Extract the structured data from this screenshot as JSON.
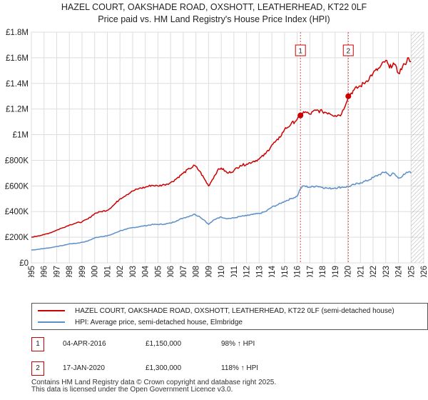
{
  "chart_data": {
    "type": "line",
    "title": "HAZEL COURT, OAKSHADE ROAD, OXSHOTT, LEATHERHEAD, KT22 0LF",
    "subtitle": "Price paid vs. HM Land Registry's House Price Index (HPI)",
    "xlabel": "",
    "ylabel": "",
    "xlim": [
      1995,
      2026
    ],
    "ylim": [
      0,
      1800000
    ],
    "x_ticks": [
      "1995",
      "1996",
      "1997",
      "1998",
      "1999",
      "2000",
      "2001",
      "2002",
      "2003",
      "2004",
      "2005",
      "2006",
      "2007",
      "2008",
      "2009",
      "2010",
      "2011",
      "2012",
      "2013",
      "2014",
      "2015",
      "2016",
      "2017",
      "2018",
      "2019",
      "2020",
      "2021",
      "2022",
      "2023",
      "2024",
      "2025",
      "2026"
    ],
    "y_ticks": [
      {
        "value": 0,
        "label": "£0"
      },
      {
        "value": 200000,
        "label": "£200K"
      },
      {
        "value": 400000,
        "label": "£400K"
      },
      {
        "value": 600000,
        "label": "£600K"
      },
      {
        "value": 800000,
        "label": "£800K"
      },
      {
        "value": 1000000,
        "label": "£1M"
      },
      {
        "value": 1200000,
        "label": "£1.2M"
      },
      {
        "value": 1400000,
        "label": "£1.4M"
      },
      {
        "value": 1600000,
        "label": "£1.6M"
      },
      {
        "value": 1800000,
        "label": "£1.8M"
      }
    ],
    "grid": true,
    "future_hatch_from": 2025.0,
    "series": [
      {
        "name": "HAZEL COURT, OAKSHADE ROAD, OXSHOTT, LEATHERHEAD, KT22 0LF (semi-detached house)",
        "color": "#cc0000",
        "x": [
          1995.0,
          1995.5,
          1996.0,
          1996.5,
          1997.0,
          1997.5,
          1998.0,
          1998.5,
          1999.0,
          1999.5,
          2000.0,
          2000.5,
          2001.0,
          2001.5,
          2002.0,
          2002.5,
          2003.0,
          2003.5,
          2004.0,
          2004.5,
          2005.0,
          2005.5,
          2006.0,
          2006.5,
          2007.0,
          2007.5,
          2007.9,
          2008.3,
          2008.7,
          2009.0,
          2009.3,
          2009.7,
          2010.0,
          2010.5,
          2011.0,
          2011.5,
          2012.0,
          2012.5,
          2013.0,
          2013.5,
          2014.0,
          2014.5,
          2015.0,
          2015.5,
          2016.0,
          2016.26,
          2016.5,
          2017.0,
          2017.5,
          2018.0,
          2018.5,
          2019.0,
          2019.5,
          2020.04,
          2020.5,
          2021.0,
          2021.5,
          2022.0,
          2022.5,
          2023.0,
          2023.3,
          2023.6,
          2024.0,
          2024.5,
          2024.8,
          2025.0
        ],
        "values": [
          200000,
          210000,
          220000,
          235000,
          255000,
          275000,
          295000,
          310000,
          320000,
          345000,
          385000,
          400000,
          410000,
          450000,
          500000,
          530000,
          560000,
          580000,
          590000,
          605000,
          600000,
          610000,
          625000,
          660000,
          700000,
          735000,
          760000,
          715000,
          650000,
          600000,
          650000,
          720000,
          740000,
          700000,
          720000,
          760000,
          770000,
          790000,
          810000,
          850000,
          920000,
          960000,
          1040000,
          1080000,
          1120000,
          1150000,
          1180000,
          1160000,
          1190000,
          1180000,
          1170000,
          1150000,
          1160000,
          1300000,
          1350000,
          1380000,
          1420000,
          1480000,
          1520000,
          1580000,
          1520000,
          1560000,
          1480000,
          1550000,
          1600000,
          1570000
        ]
      },
      {
        "name": "HPI: Average price, semi-detached house, Elmbridge",
        "color": "#5b8fc9",
        "x": [
          1995.0,
          1995.5,
          1996.0,
          1996.5,
          1997.0,
          1997.5,
          1998.0,
          1998.5,
          1999.0,
          1999.5,
          2000.0,
          2000.5,
          2001.0,
          2001.5,
          2002.0,
          2002.5,
          2003.0,
          2003.5,
          2004.0,
          2004.5,
          2005.0,
          2005.5,
          2006.0,
          2006.5,
          2007.0,
          2007.5,
          2007.9,
          2008.3,
          2008.7,
          2009.0,
          2009.3,
          2009.7,
          2010.0,
          2010.5,
          2011.0,
          2011.5,
          2012.0,
          2012.5,
          2013.0,
          2013.5,
          2014.0,
          2014.5,
          2015.0,
          2015.5,
          2016.0,
          2016.26,
          2016.5,
          2017.0,
          2017.5,
          2018.0,
          2018.5,
          2019.0,
          2019.5,
          2020.04,
          2020.5,
          2021.0,
          2021.5,
          2022.0,
          2022.5,
          2023.0,
          2023.3,
          2023.6,
          2024.0,
          2024.5,
          2024.8,
          2025.0
        ],
        "values": [
          100000,
          105000,
          112000,
          118000,
          128000,
          136000,
          148000,
          152000,
          160000,
          172000,
          195000,
          205000,
          210000,
          228000,
          250000,
          262000,
          275000,
          282000,
          290000,
          298000,
          300000,
          302000,
          310000,
          330000,
          350000,
          365000,
          380000,
          360000,
          330000,
          300000,
          325000,
          350000,
          358000,
          345000,
          350000,
          362000,
          368000,
          378000,
          385000,
          400000,
          435000,
          455000,
          480000,
          500000,
          520000,
          580000,
          600000,
          590000,
          600000,
          590000,
          580000,
          585000,
          590000,
          595000,
          610000,
          625000,
          640000,
          665000,
          690000,
          710000,
          680000,
          700000,
          660000,
          690000,
          710000,
          700000
        ]
      }
    ],
    "transactions": [
      {
        "id": "1",
        "x": 2016.26,
        "value": 1150000,
        "date": "04-APR-2016",
        "price": "£1,150,000",
        "hpi": "98% ↑ HPI"
      },
      {
        "id": "2",
        "x": 2020.04,
        "value": 1300000,
        "date": "17-JAN-2020",
        "price": "£1,300,000",
        "hpi": "118% ↑ HPI"
      }
    ]
  },
  "footer": {
    "line1": "Contains HM Land Registry data © Crown copyright and database right 2025.",
    "line2": "This data is licensed under the Open Government Licence v3.0."
  }
}
